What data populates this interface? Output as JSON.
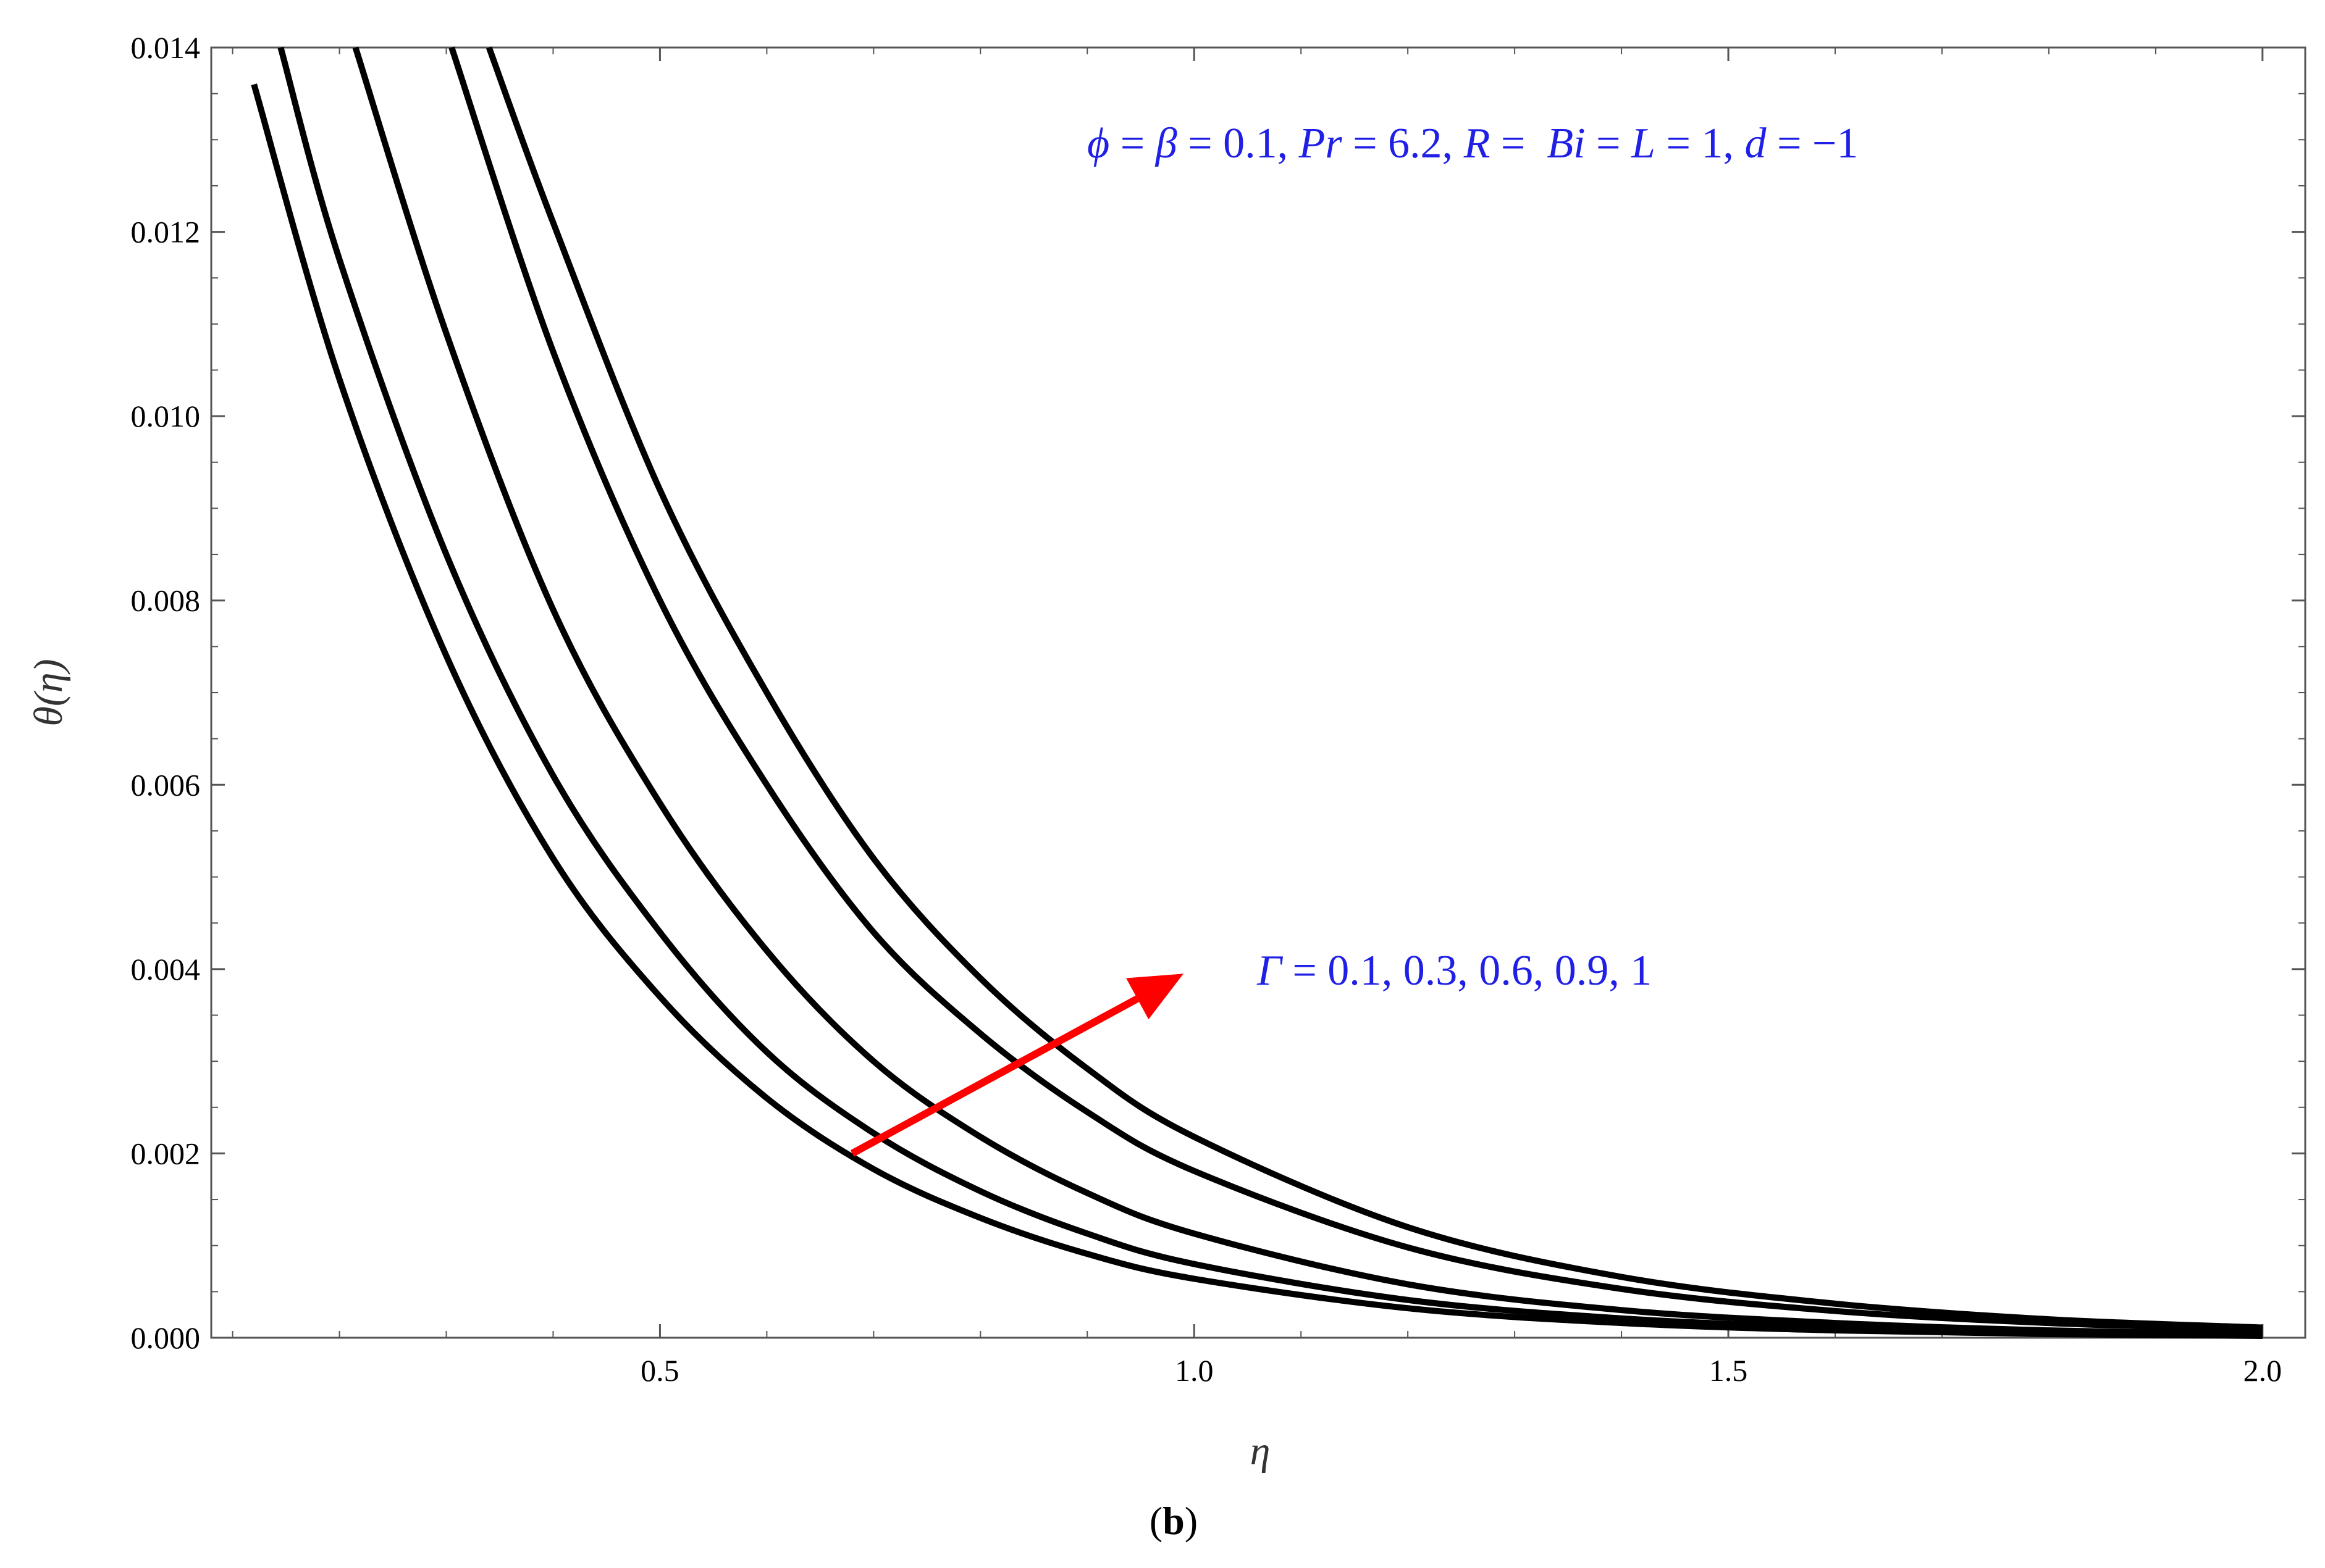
{
  "chart_data": {
    "type": "line",
    "xlabel": "η",
    "ylabel": "θ(η)",
    "xlim": [
      0.08,
      2.04
    ],
    "ylim": [
      0,
      0.014
    ],
    "x_ticks": [
      0.5,
      1.0,
      1.5,
      2.0
    ],
    "x_tick_labels": [
      "0.5",
      "1.0",
      "1.5",
      "2.0"
    ],
    "y_ticks": [
      0,
      0.002,
      0.004,
      0.006,
      0.008,
      0.01,
      0.012,
      0.014
    ],
    "y_tick_labels": [
      "0.000",
      "0.002",
      "0.004",
      "0.006",
      "0.008",
      "0.010",
      "0.012",
      "0.014"
    ],
    "grid": false,
    "series": [
      {
        "color": "#000000",
        "x": [
          0.12,
          0.2,
          0.3,
          0.4,
          0.5,
          0.6,
          0.7,
          0.8,
          0.9,
          1.0,
          1.2,
          1.4,
          1.6,
          1.8,
          2.0
        ],
        "y": [
          0.0136,
          0.0104,
          0.0074,
          0.0052,
          0.0037,
          0.0026,
          0.00183,
          0.0013,
          0.00091,
          0.00064,
          0.00032,
          0.00016,
          8e-05,
          4e-05,
          2e-05
        ]
      },
      {
        "color": "#000000",
        "x": [
          0.145,
          0.2,
          0.3,
          0.4,
          0.5,
          0.6,
          0.7,
          0.8,
          0.9,
          1.0,
          1.2,
          1.4,
          1.6,
          1.8,
          2.0
        ],
        "y": [
          0.014,
          0.0117,
          0.0085,
          0.0061,
          0.0044,
          0.0031,
          0.00222,
          0.00159,
          0.00113,
          0.0008,
          0.00041,
          0.00021,
          0.00011,
          5e-05,
          3e-05
        ]
      },
      {
        "color": "#000000",
        "x": [
          0.215,
          0.3,
          0.4,
          0.5,
          0.6,
          0.7,
          0.8,
          0.9,
          1.0,
          1.2,
          1.4,
          1.6,
          1.8,
          2.0
        ],
        "y": [
          0.014,
          0.0109,
          0.0079,
          0.0058,
          0.0042,
          0.003,
          0.00218,
          0.00157,
          0.00113,
          0.00058,
          0.0003,
          0.00016,
          8e-05,
          4e-05
        ]
      },
      {
        "color": "#000000",
        "x": [
          0.305,
          0.4,
          0.5,
          0.6,
          0.7,
          0.8,
          0.9,
          1.0,
          1.2,
          1.4,
          1.6,
          1.8,
          2.0
        ],
        "y": [
          0.014,
          0.0107,
          0.008,
          0.006,
          0.0044,
          0.0033,
          0.00245,
          0.00181,
          0.00098,
          0.00053,
          0.00029,
          0.00016,
          9e-05
        ]
      },
      {
        "color": "#000000",
        "x": [
          0.34,
          0.4,
          0.5,
          0.6,
          0.7,
          0.8,
          0.9,
          1.0,
          1.2,
          1.4,
          1.6,
          1.8,
          2.0
        ],
        "y": [
          0.014,
          0.0121,
          0.0092,
          0.007,
          0.0052,
          0.0039,
          0.00292,
          0.00218,
          0.0012,
          0.00066,
          0.00037,
          0.0002,
          0.00011
        ]
      }
    ],
    "arrow": {
      "color": "#ff0000",
      "from": [
        0.68,
        0.002
      ],
      "to": [
        0.99,
        0.00395
      ]
    },
    "params_annotation": {
      "segments": [
        {
          "text": "ϕ",
          "italic": true
        },
        {
          "text": " = ",
          "italic": false
        },
        {
          "text": "β",
          "italic": true
        },
        {
          "text": " = 0.1, ",
          "italic": false
        },
        {
          "text": "Pr",
          "italic": true
        },
        {
          "text": " = 6.2, ",
          "italic": false
        },
        {
          "text": "R",
          "italic": true
        },
        {
          "text": " =  ",
          "italic": false
        },
        {
          "text": "Bi",
          "italic": true
        },
        {
          "text": " = ",
          "italic": false
        },
        {
          "text": "L",
          "italic": true
        },
        {
          "text": " = 1, ",
          "italic": false
        },
        {
          "text": "d",
          "italic": true
        },
        {
          "text": " = −1",
          "italic": false
        }
      ],
      "color": "#1f1fe6"
    },
    "gamma_annotation": {
      "segments": [
        {
          "text": "Γ",
          "italic": true
        },
        {
          "text": " = 0.1, 0.3, 0.6, 0.9, 1",
          "italic": false
        }
      ],
      "color": "#1f1fe6"
    }
  },
  "caption": {
    "open": "(",
    "label": "b",
    "close": ")"
  }
}
